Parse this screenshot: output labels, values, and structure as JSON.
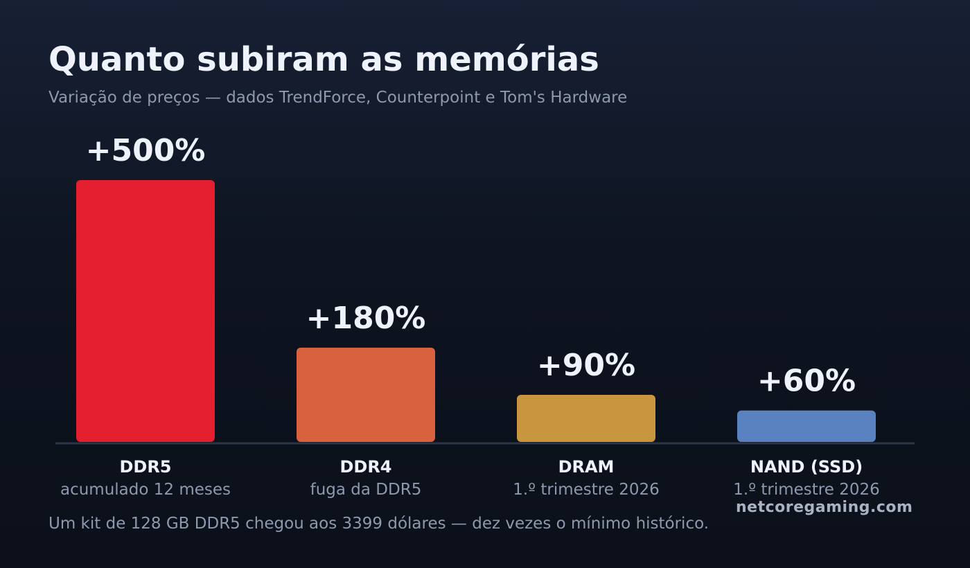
{
  "header": {
    "title": "Quanto subiram as memórias",
    "subtitle": "Variação de preços — dados TrendForce, Counterpoint e Tom's Hardware"
  },
  "chart_data": {
    "type": "bar",
    "categories": [
      "DDR5",
      "DDR4",
      "DRAM",
      "NAND (SSD)"
    ],
    "category_sublabels": [
      "acumulado 12 meses",
      "fuga da DDR5",
      "1.º trimestre 2026",
      "1.º trimestre 2026"
    ],
    "values": [
      500,
      180,
      90,
      60
    ],
    "data_labels": [
      "+500%",
      "+180%",
      "+90%",
      "+60%"
    ],
    "colors": [
      "#e31f30",
      "#d9623e",
      "#c8963f",
      "#5b82c0"
    ],
    "ylim": [
      0,
      500
    ],
    "grid": false,
    "title": "",
    "xlabel": "",
    "ylabel": ""
  },
  "footnote": "Um kit de 128 GB DDR5 chegou aos 3399 dólares — dez vezes o mínimo histórico.",
  "watermark": "netcoregaming.com",
  "colors": {
    "background": "#0e1420",
    "axis_line": "#2a3548",
    "title_text": "#eef2fb",
    "muted_text": "#8d99ae"
  }
}
